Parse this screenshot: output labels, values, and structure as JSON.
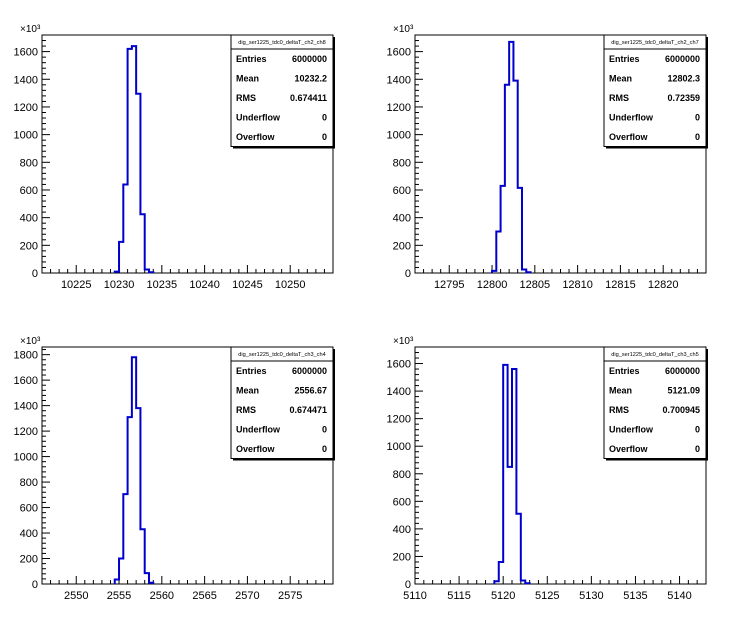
{
  "chart_data": [
    {
      "type": "bar",
      "histogram": true,
      "exponent_label": "×10³",
      "xlim": [
        10221,
        10255
      ],
      "ylim": [
        0,
        1720
      ],
      "xticks": [
        10225,
        10230,
        10235,
        10240,
        10245,
        10250
      ],
      "yticks": [
        0,
        200,
        400,
        600,
        800,
        1000,
        1200,
        1400,
        1600
      ],
      "bin_edges": [
        10229.5,
        10230,
        10230.5,
        10231,
        10231.5,
        10232,
        10232.5,
        10233,
        10233.5,
        10234
      ],
      "values": [
        10,
        225,
        640,
        1620,
        1640,
        1295,
        425,
        25,
        5
      ],
      "line_color": "#0000cc",
      "stats": {
        "name": "dig_ser1225_tdc0_deltaT_ch2_ch8",
        "rows": [
          {
            "label": "Entries",
            "value": "6000000"
          },
          {
            "label": "Mean",
            "value": "10232.2"
          },
          {
            "label": "RMS",
            "value": "0.674411"
          },
          {
            "label": "Underflow",
            "value": "0"
          },
          {
            "label": "Overflow",
            "value": "0"
          }
        ]
      }
    },
    {
      "type": "bar",
      "histogram": true,
      "exponent_label": "×10³",
      "xlim": [
        12791,
        12825
      ],
      "ylim": [
        0,
        1720
      ],
      "xticks": [
        12795,
        12800,
        12805,
        12810,
        12815,
        12820
      ],
      "yticks": [
        0,
        200,
        400,
        600,
        800,
        1000,
        1200,
        1400,
        1600
      ],
      "bin_edges": [
        12800,
        12800.5,
        12801,
        12801.5,
        12802,
        12802.5,
        12803,
        12803.5,
        12804,
        12804.5
      ],
      "values": [
        15,
        300,
        630,
        1360,
        1670,
        1390,
        615,
        25,
        5
      ],
      "line_color": "#0000cc",
      "stats": {
        "name": "dig_ser1225_tdc0_deltaT_ch2_ch7",
        "rows": [
          {
            "label": "Entries",
            "value": "6000000"
          },
          {
            "label": "Mean",
            "value": "12802.3"
          },
          {
            "label": "RMS",
            "value": "0.72359"
          },
          {
            "label": "Underflow",
            "value": "0"
          },
          {
            "label": "Overflow",
            "value": "0"
          }
        ]
      }
    },
    {
      "type": "bar",
      "histogram": true,
      "exponent_label": "×10³",
      "xlim": [
        2546,
        2580
      ],
      "ylim": [
        0,
        1860
      ],
      "xticks": [
        2550,
        2555,
        2560,
        2565,
        2570,
        2575
      ],
      "yticks": [
        0,
        200,
        400,
        600,
        800,
        1000,
        1200,
        1400,
        1600,
        1800
      ],
      "bin_edges": [
        2554.5,
        2555,
        2555.5,
        2556,
        2556.5,
        2557,
        2557.5,
        2558,
        2558.5,
        2559
      ],
      "values": [
        35,
        200,
        705,
        1310,
        1780,
        1380,
        430,
        85,
        10
      ],
      "line_color": "#0000cc",
      "stats": {
        "name": "dig_ser1225_tdc0_deltaT_ch3_ch4",
        "rows": [
          {
            "label": "Entries",
            "value": "6000000"
          },
          {
            "label": "Mean",
            "value": "2556.67"
          },
          {
            "label": "RMS",
            "value": "0.674471"
          },
          {
            "label": "Underflow",
            "value": "0"
          },
          {
            "label": "Overflow",
            "value": "0"
          }
        ]
      }
    },
    {
      "type": "bar",
      "histogram": true,
      "exponent_label": "×10³",
      "xlim": [
        5110,
        5143
      ],
      "ylim": [
        0,
        1720
      ],
      "xticks": [
        5110,
        5115,
        5120,
        5125,
        5130,
        5135,
        5140
      ],
      "yticks": [
        0,
        200,
        400,
        600,
        800,
        1000,
        1200,
        1400,
        1600
      ],
      "bin_edges": [
        5119,
        5119.5,
        5120,
        5120.5,
        5121,
        5121.5,
        5122,
        5122.5,
        5123
      ],
      "values": [
        20,
        160,
        1590,
        850,
        1560,
        510,
        25,
        5
      ],
      "line_color": "#0000cc",
      "stats": {
        "name": "dig_ser1225_tdc0_deltaT_ch3_ch5",
        "rows": [
          {
            "label": "Entries",
            "value": "6000000"
          },
          {
            "label": "Mean",
            "value": "5121.09"
          },
          {
            "label": "RMS",
            "value": "0.700945"
          },
          {
            "label": "Underflow",
            "value": "0"
          },
          {
            "label": "Overflow",
            "value": "0"
          }
        ]
      }
    }
  ]
}
